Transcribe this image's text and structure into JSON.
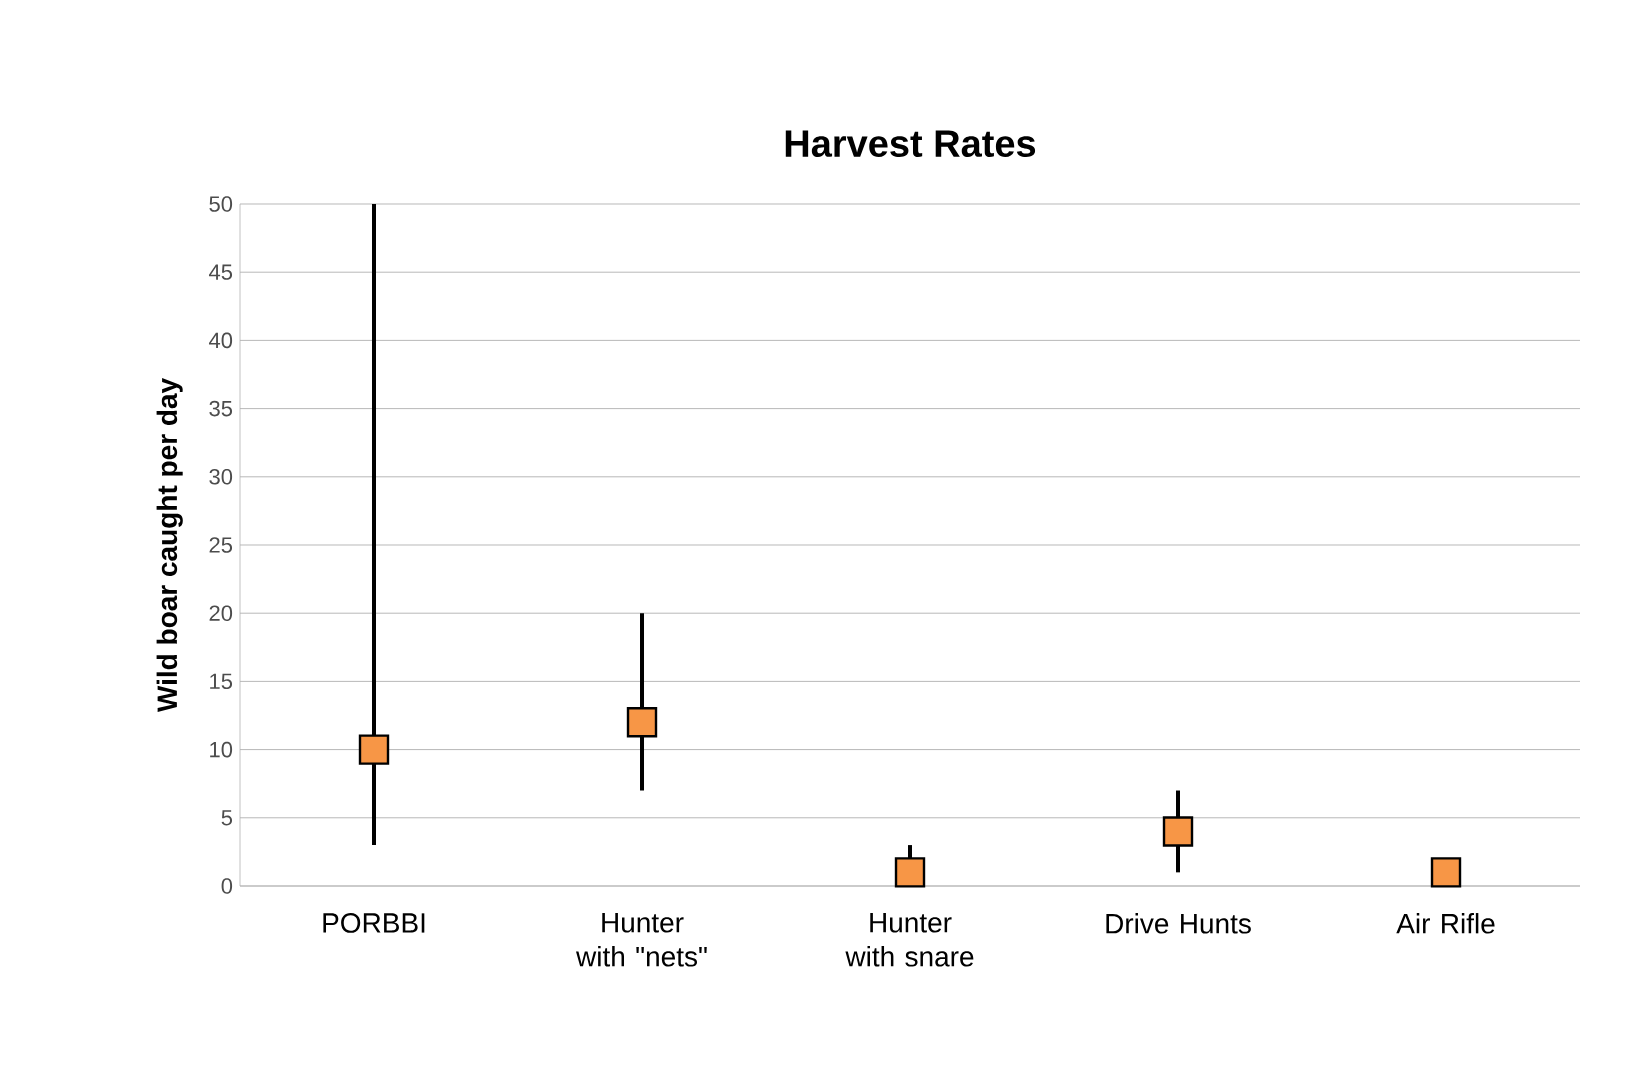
{
  "chart_data": {
    "type": "scatter",
    "title": "Harvest Rates",
    "ylabel": "Wild boar caught per day",
    "categories": [
      "PORBBI",
      "Hunter with \"nets\"",
      "Hunter with snare",
      "Drive Hunts",
      "Air Rifle"
    ],
    "series": [
      {
        "color": "#f79646",
        "values": [
          10,
          12,
          1,
          4,
          1
        ],
        "errors": [
          [
            3,
            50
          ],
          [
            7,
            20
          ],
          [
            1,
            3
          ],
          [
            1,
            7
          ],
          null
        ]
      }
    ],
    "ylim": [
      0,
      50
    ],
    "yticks": [
      0,
      5,
      10,
      15,
      20,
      25,
      30,
      35,
      40,
      45,
      50
    ],
    "grid": "y",
    "marker": "square"
  }
}
